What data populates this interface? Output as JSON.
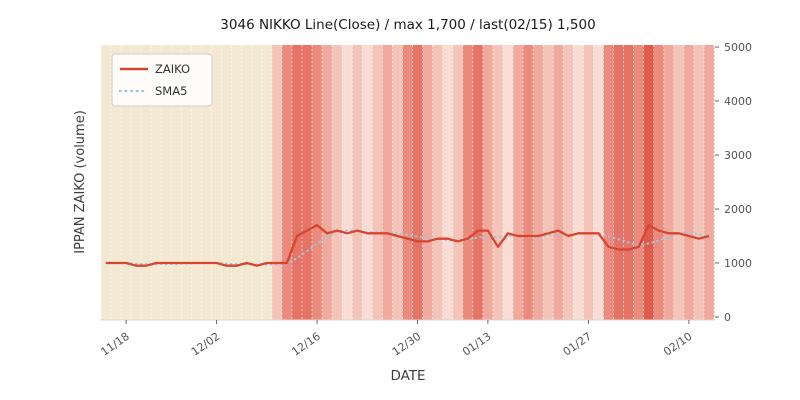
{
  "title": "3046 NIKKO Line(Close) / max 1,700 / last(02/15) 1,500",
  "legend": {
    "zaiko_label": "ZAIKO",
    "sma5_label": "SMA5"
  },
  "axes": {
    "ylabel": "IPPAN ZAIKO (volume)",
    "xlabel": "DATE",
    "y_ticks": [
      0,
      1000,
      2000,
      3000,
      4000,
      5000
    ],
    "x_ticks": [
      "11/18",
      "12/02",
      "12/16",
      "12/30",
      "01/13",
      "01/27",
      "02/10"
    ]
  },
  "colors": {
    "zaiko_line": "#d8452f",
    "sma5_line": "#a3c3d9",
    "tick_text": "#555555",
    "title_text": "#1a1a1a",
    "axis_label_text": "#3d3d3d",
    "legend_border": "#cccccc",
    "grid_dash": "#ffffff"
  },
  "chart_data": {
    "type": "line",
    "title": "3046 NIKKO Line(Close) / max 1,700 / last(02/15) 1,500",
    "xlabel": "DATE",
    "ylabel": "IPPAN ZAIKO (volume)",
    "ylim": [
      0,
      5000
    ],
    "x_tick_labels": [
      "11/18",
      "12/02",
      "12/16",
      "12/30",
      "01/13",
      "01/27",
      "02/10"
    ],
    "legend_position": "upper left",
    "grid": "vertical white dashed day lines over colored day bands",
    "max_value": 1700,
    "last_date": "02/15",
    "last_value": 1500,
    "dates": [
      "11/16",
      "11/17",
      "11/18",
      "11/19",
      "11/22",
      "11/24",
      "11/25",
      "11/26",
      "11/29",
      "11/30",
      "12/01",
      "12/02",
      "12/03",
      "12/06",
      "12/07",
      "12/08",
      "12/09",
      "12/10",
      "12/13",
      "12/14",
      "12/15",
      "12/16",
      "12/17",
      "12/20",
      "12/21",
      "12/22",
      "12/23",
      "12/24",
      "12/27",
      "12/28",
      "12/29",
      "12/30",
      "01/04",
      "01/05",
      "01/06",
      "01/07",
      "01/11",
      "01/12",
      "01/13",
      "01/14",
      "01/17",
      "01/18",
      "01/19",
      "01/20",
      "01/21",
      "01/24",
      "01/25",
      "01/26",
      "01/27",
      "01/28",
      "01/31",
      "02/01",
      "02/02",
      "02/03",
      "02/04",
      "02/07",
      "02/08",
      "02/09",
      "02/10",
      "02/14",
      "02/15"
    ],
    "series": [
      {
        "name": "ZAIKO",
        "style": "solid red line",
        "values": [
          1000,
          1000,
          1000,
          950,
          950,
          1000,
          1000,
          1000,
          1000,
          1000,
          1000,
          1000,
          950,
          950,
          1000,
          950,
          1000,
          1000,
          1000,
          1500,
          1600,
          1700,
          1550,
          1600,
          1550,
          1600,
          1550,
          1550,
          1550,
          1500,
          1450,
          1400,
          1400,
          1450,
          1450,
          1400,
          1450,
          1600,
          1600,
          1300,
          1550,
          1500,
          1500,
          1500,
          1550,
          1600,
          1500,
          1550,
          1550,
          1550,
          1300,
          1250,
          1250,
          1300,
          1700,
          1600,
          1550,
          1550,
          1500,
          1450,
          1500
        ]
      },
      {
        "name": "SMA5",
        "style": "dotted light-blue line",
        "note": "5-day simple moving average of ZAIKO (computed from ZAIKO values)"
      }
    ],
    "band_colors": [
      "#f3e9d2",
      "#f3e9d2",
      "#f3e9d2",
      "#f3e9d2",
      "#f3e9d2",
      "#f3e9d2",
      "#f3e9d2",
      "#f3e9d2",
      "#f3e9d2",
      "#f3e9d2",
      "#f3e9d2",
      "#f3e9d2",
      "#f3e9d2",
      "#f3e9d2",
      "#f3e9d2",
      "#f3e9d2",
      "#f3e9d2",
      "#f5c4b8",
      "#ea8b7d",
      "#e57466",
      "#e57466",
      "#ea8b7d",
      "#f0a99c",
      "#f5c4b8",
      "#f9ddd4",
      "#f5c4b8",
      "#f9ddd4",
      "#f5c4b8",
      "#f0a99c",
      "#f5c4b8",
      "#ea8b7d",
      "#e57466",
      "#f0a99c",
      "#f5c4b8",
      "#f9ddd4",
      "#f5c4b8",
      "#ea8b7d",
      "#e57466",
      "#f0a99c",
      "#f5c4b8",
      "#f9ddd4",
      "#f0a99c",
      "#ea8b7d",
      "#f0a99c",
      "#f5c4b8",
      "#f0a99c",
      "#f5c4b8",
      "#f9ddd4",
      "#f5c4b8",
      "#f9ddd4",
      "#ea8b7d",
      "#e57466",
      "#e57466",
      "#ea8b7d",
      "#e05b4c",
      "#ea8b7d",
      "#f0a99c",
      "#f5c4b8",
      "#f0a99c",
      "#f5c4b8",
      "#f0a99c"
    ]
  }
}
